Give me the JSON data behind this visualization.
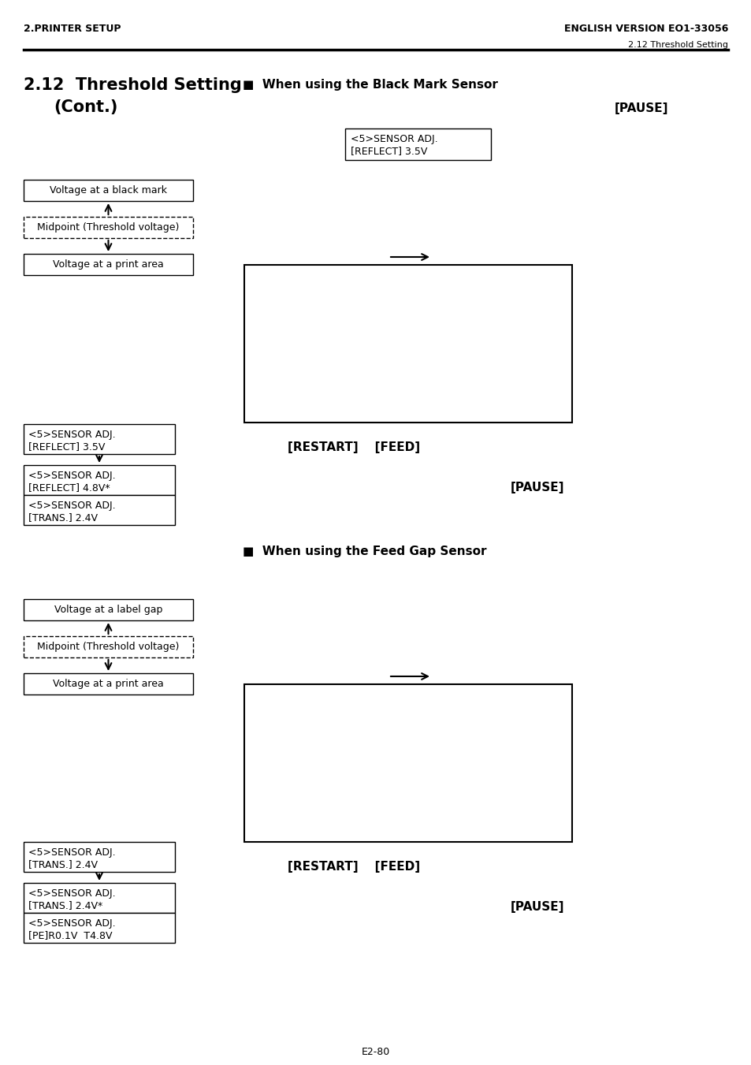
{
  "header_left": "2.PRINTER SETUP",
  "header_right": "ENGLISH VERSION EO1-33056",
  "subheader_right": "2.12 Threshold Setting",
  "title_line1": "2.12  Threshold Setting",
  "title_line2": "(Cont.)",
  "section1_title": "■  When using the Black Mark Sensor",
  "pause_label1": "[PAUSE]",
  "sensor_adj_box1_line1": "<5>SENSOR ADJ.",
  "sensor_adj_box1_line2": "[REFLECT] 3.5V",
  "box_voltage_black": "Voltage at a black mark",
  "box_midpoint": "Midpoint (Threshold voltage)",
  "box_voltage_print": "Voltage at a print area",
  "box_reflect_35_l1": "<5>SENSOR ADJ.",
  "box_reflect_35_l2": "[REFLECT] 3.5V",
  "box_reflect_48_l1": "<5>SENSOR ADJ.",
  "box_reflect_48_l2": "[REFLECT] 4.8V*",
  "box_trans_24_l1": "<5>SENSOR ADJ.",
  "box_trans_24_l2": "[TRANS.] 2.4V",
  "restart_feed_label1": "[RESTART]    [FEED]",
  "pause_label2": "[PAUSE]",
  "section2_title": "■  When using the Feed Gap Sensor",
  "box_voltage_gap": "Voltage at a label gap",
  "box_midpoint2": "Midpoint (Threshold voltage)",
  "box_voltage_print2": "Voltage at a print area",
  "box_trans_24_2_l1": "<5>SENSOR ADJ.",
  "box_trans_24_2_l2": "[TRANS.] 2.4V",
  "box_trans_24star_l1": "<5>SENSOR ADJ.",
  "box_trans_24star_l2": "[TRANS.] 2.4V*",
  "box_pe_r01_l1": "<5>SENSOR ADJ.",
  "box_pe_r01_l2": "[PE]R0.1V  T4.8V",
  "restart_feed_label2": "[RESTART]    [FEED]",
  "pause_label3": "[PAUSE]",
  "footer": "E2-80",
  "bg_color": "#ffffff"
}
